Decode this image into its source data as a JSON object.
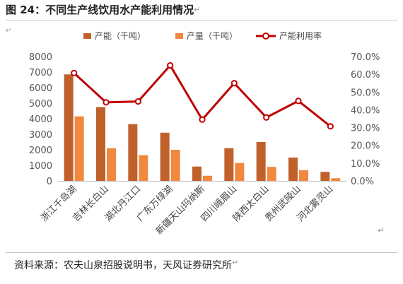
{
  "figure_title": "图 24：不同生产线饮用水产能利用情况",
  "source_note": "资料来源：农夫山泉招股说明书，天风证券研究所",
  "chart_data": {
    "type": "bar",
    "categories": [
      "浙江千岛湖",
      "吉林长白山",
      "湖北丹江口",
      "广东万绿湖",
      "新疆天山玛纳斯",
      "四川峨眉山",
      "陕西太白山",
      "贵州武陵山",
      "河北雾灵山"
    ],
    "series": [
      {
        "name": "产能（千吨）",
        "type": "bar",
        "axis": "left",
        "color": "#C0612B",
        "values": [
          6850,
          4750,
          3650,
          3100,
          920,
          2100,
          2500,
          1500,
          580
        ]
      },
      {
        "name": "产量（千吨）",
        "type": "bar",
        "axis": "left",
        "color": "#F0883D",
        "values": [
          4150,
          2100,
          1650,
          2000,
          330,
          1150,
          900,
          680,
          170
        ]
      },
      {
        "name": "产能利用率",
        "type": "line",
        "axis": "right",
        "color": "#C00000",
        "values": [
          0.607,
          0.442,
          0.447,
          0.65,
          0.345,
          0.55,
          0.357,
          0.45,
          0.307
        ]
      }
    ],
    "y_left": {
      "min": 0,
      "max": 8000,
      "step": 1000,
      "tick_labels": [
        "0",
        "1000",
        "2000",
        "3000",
        "4000",
        "5000",
        "6000",
        "7000",
        "8000"
      ]
    },
    "y_right": {
      "min": 0,
      "max": 0.7,
      "step": 0.1,
      "tick_labels": [
        "0.0%",
        "10.0%",
        "20.0%",
        "30.0%",
        "40.0%",
        "50.0%",
        "60.0%",
        "70.0%"
      ]
    },
    "legend_position": "top",
    "grid": false
  }
}
